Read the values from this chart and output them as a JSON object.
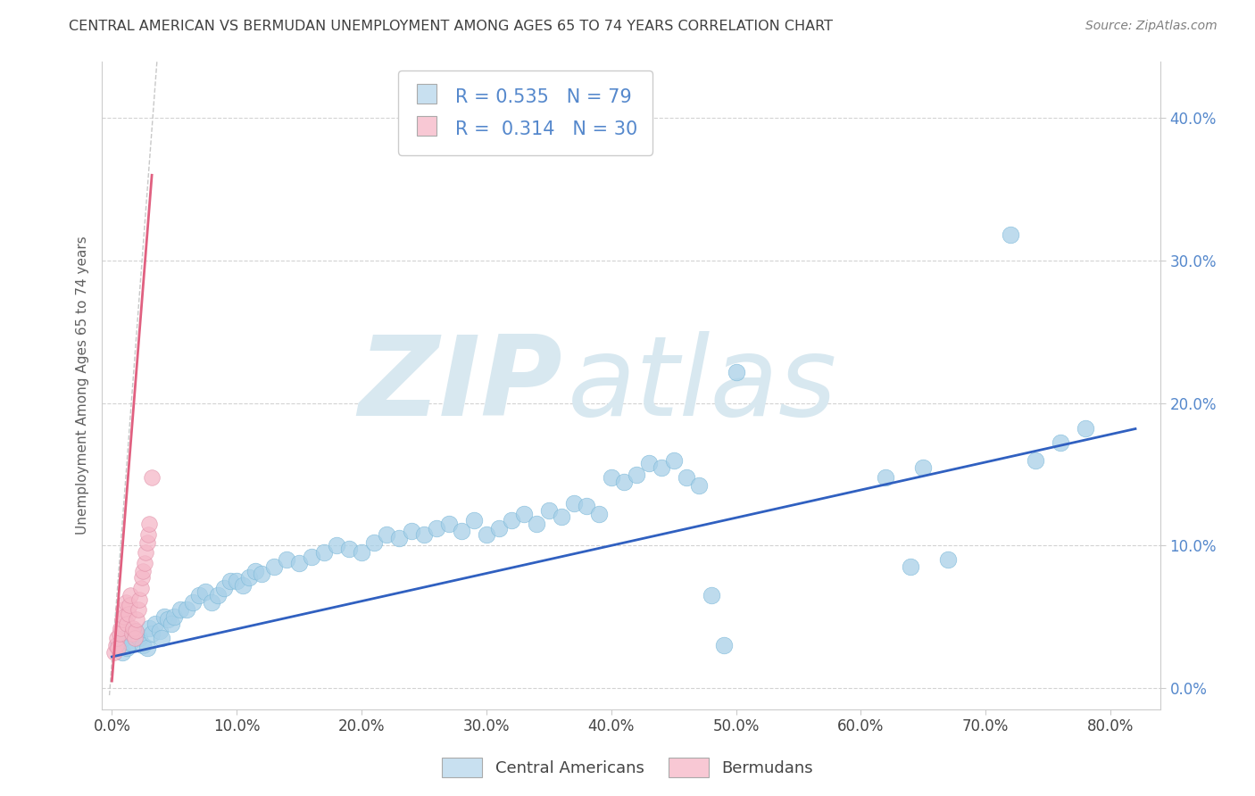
{
  "title": "CENTRAL AMERICAN VS BERMUDAN UNEMPLOYMENT AMONG AGES 65 TO 74 YEARS CORRELATION CHART",
  "source": "Source: ZipAtlas.com",
  "ylabel": "Unemployment Among Ages 65 to 74 years",
  "xlabel_ticks": [
    "0.0%",
    "10.0%",
    "20.0%",
    "30.0%",
    "40.0%",
    "50.0%",
    "60.0%",
    "70.0%",
    "80.0%"
  ],
  "xlabel_vals": [
    0.0,
    0.1,
    0.2,
    0.3,
    0.4,
    0.5,
    0.6,
    0.7,
    0.8
  ],
  "ylabel_ticks": [
    "0.0%",
    "10.0%",
    "20.0%",
    "30.0%",
    "40.0%"
  ],
  "ylabel_vals": [
    0.0,
    0.1,
    0.2,
    0.3,
    0.4
  ],
  "xlim": [
    -0.008,
    0.84
  ],
  "ylim": [
    -0.015,
    0.44
  ],
  "blue_dot_color": "#a8d0e8",
  "blue_dot_edge": "#7ab8d8",
  "pink_dot_color": "#f5b8c8",
  "pink_dot_edge": "#e090a8",
  "blue_line_color": "#3060c0",
  "pink_line_color": "#e06080",
  "legend_blue_fill": "#c8e0f0",
  "legend_pink_fill": "#f8c8d4",
  "R_blue": 0.535,
  "N_blue": 79,
  "R_pink": 0.314,
  "N_pink": 30,
  "watermark_text": "ZIPatlas",
  "watermark_color": "#d8e8f0",
  "grid_color": "#e0e0e0",
  "dashed_line_color": "#c8c8c8",
  "tick_color": "#5588cc",
  "title_color": "#404040",
  "source_color": "#808080",
  "ylabel_color": "#606060",
  "blue_x": [
    0.005,
    0.008,
    0.01,
    0.012,
    0.015,
    0.018,
    0.02,
    0.022,
    0.025,
    0.028,
    0.03,
    0.032,
    0.035,
    0.038,
    0.04,
    0.042,
    0.045,
    0.048,
    0.05,
    0.055,
    0.06,
    0.065,
    0.07,
    0.075,
    0.08,
    0.085,
    0.09,
    0.095,
    0.1,
    0.105,
    0.11,
    0.115,
    0.12,
    0.13,
    0.14,
    0.15,
    0.16,
    0.17,
    0.18,
    0.19,
    0.2,
    0.21,
    0.22,
    0.23,
    0.24,
    0.25,
    0.26,
    0.27,
    0.28,
    0.29,
    0.3,
    0.31,
    0.32,
    0.33,
    0.34,
    0.35,
    0.36,
    0.37,
    0.38,
    0.39,
    0.4,
    0.41,
    0.42,
    0.43,
    0.44,
    0.45,
    0.46,
    0.47,
    0.48,
    0.49,
    0.62,
    0.65,
    0.72,
    0.74,
    0.76,
    0.78,
    0.64,
    0.67,
    0.5
  ],
  "blue_y": [
    0.03,
    0.025,
    0.035,
    0.028,
    0.032,
    0.04,
    0.038,
    0.035,
    0.03,
    0.028,
    0.042,
    0.038,
    0.045,
    0.04,
    0.035,
    0.05,
    0.048,
    0.045,
    0.05,
    0.055,
    0.055,
    0.06,
    0.065,
    0.068,
    0.06,
    0.065,
    0.07,
    0.075,
    0.075,
    0.072,
    0.078,
    0.082,
    0.08,
    0.085,
    0.09,
    0.088,
    0.092,
    0.095,
    0.1,
    0.098,
    0.095,
    0.102,
    0.108,
    0.105,
    0.11,
    0.108,
    0.112,
    0.115,
    0.11,
    0.118,
    0.108,
    0.112,
    0.118,
    0.122,
    0.115,
    0.125,
    0.12,
    0.13,
    0.128,
    0.122,
    0.148,
    0.145,
    0.15,
    0.158,
    0.155,
    0.16,
    0.148,
    0.142,
    0.065,
    0.03,
    0.148,
    0.155,
    0.318,
    0.16,
    0.172,
    0.182,
    0.085,
    0.09,
    0.222
  ],
  "pink_x": [
    0.002,
    0.003,
    0.004,
    0.005,
    0.006,
    0.007,
    0.008,
    0.009,
    0.01,
    0.011,
    0.012,
    0.013,
    0.014,
    0.015,
    0.016,
    0.017,
    0.018,
    0.019,
    0.02,
    0.021,
    0.022,
    0.023,
    0.024,
    0.025,
    0.026,
    0.027,
    0.028,
    0.029,
    0.03,
    0.032
  ],
  "pink_y": [
    0.025,
    0.03,
    0.035,
    0.028,
    0.038,
    0.042,
    0.048,
    0.055,
    0.05,
    0.06,
    0.045,
    0.052,
    0.058,
    0.065,
    0.038,
    0.042,
    0.035,
    0.04,
    0.048,
    0.055,
    0.062,
    0.07,
    0.078,
    0.082,
    0.088,
    0.095,
    0.102,
    0.108,
    0.115,
    0.148
  ],
  "blue_line_x0": 0.0,
  "blue_line_x1": 0.82,
  "blue_line_y0": 0.022,
  "blue_line_y1": 0.182,
  "pink_line_x0": 0.0,
  "pink_line_x1": 0.032,
  "pink_line_y0": 0.005,
  "pink_line_y1": 0.36
}
